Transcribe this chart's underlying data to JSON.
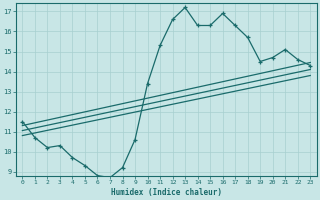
{
  "xlabel": "Humidex (Indice chaleur)",
  "bg_color": "#c8e6e6",
  "grid_color": "#a8d0d0",
  "line_color": "#1a6b6b",
  "spine_color": "#1a6b6b",
  "xlim": [
    -0.5,
    23.5
  ],
  "ylim": [
    8.8,
    17.4
  ],
  "yticks": [
    9,
    10,
    11,
    12,
    13,
    14,
    15,
    16,
    17
  ],
  "xticks": [
    0,
    1,
    2,
    3,
    4,
    5,
    6,
    7,
    8,
    9,
    10,
    11,
    12,
    13,
    14,
    15,
    16,
    17,
    18,
    19,
    20,
    21,
    22,
    23
  ],
  "curve1_x": [
    0,
    1,
    2,
    3,
    4,
    5,
    6,
    7,
    8,
    9,
    10,
    11,
    12,
    13,
    14,
    15,
    16,
    17,
    18,
    19,
    20,
    21,
    22,
    23
  ],
  "curve1_y": [
    11.5,
    10.7,
    10.2,
    10.3,
    9.7,
    9.3,
    8.8,
    8.7,
    9.2,
    10.6,
    13.4,
    15.3,
    16.6,
    17.2,
    16.3,
    16.3,
    16.9,
    16.3,
    15.7,
    14.5,
    14.7,
    15.1,
    14.6,
    14.3
  ],
  "line1_x": [
    0,
    23
  ],
  "line1_y": [
    10.8,
    13.8
  ],
  "line2_x": [
    0,
    23
  ],
  "line2_y": [
    11.05,
    14.1
  ],
  "line3_x": [
    0,
    23
  ],
  "line3_y": [
    11.3,
    14.45
  ]
}
